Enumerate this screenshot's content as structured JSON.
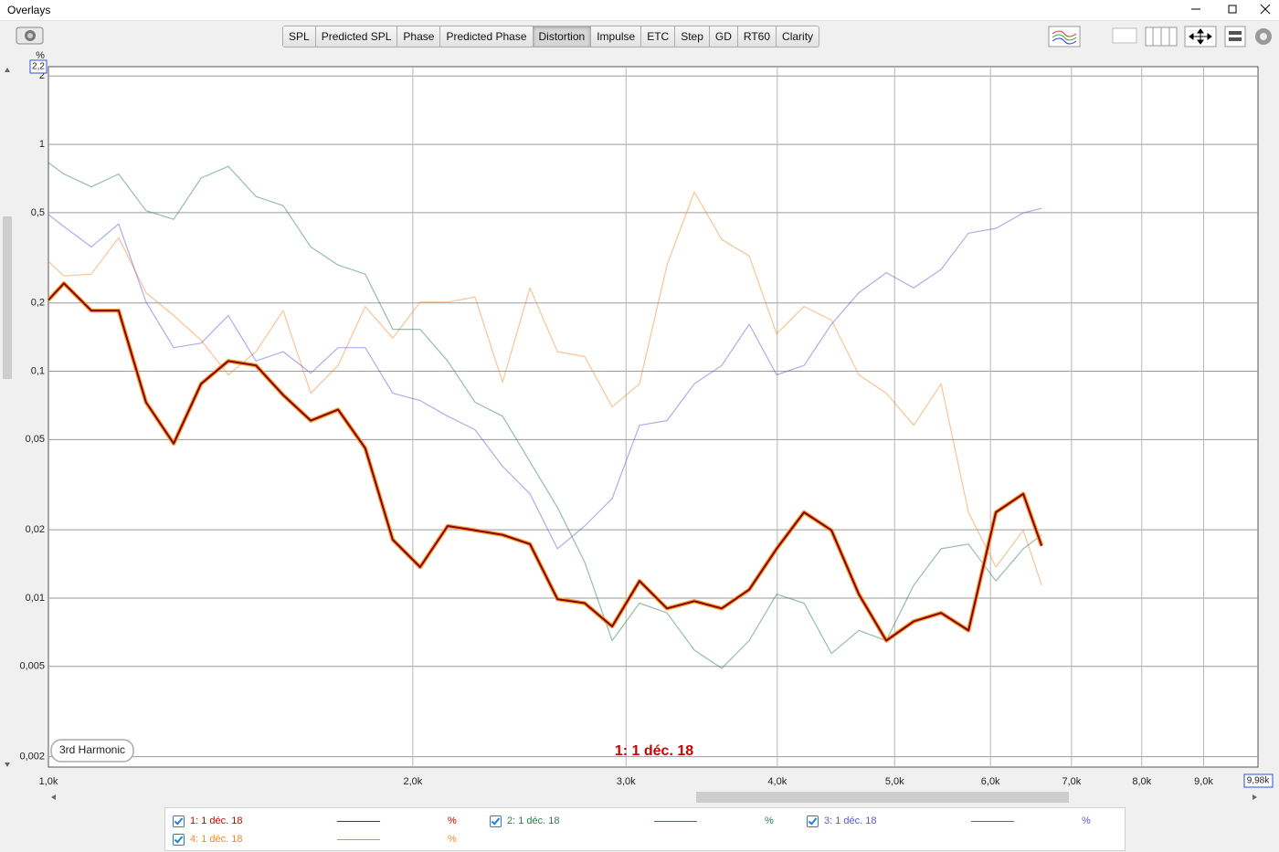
{
  "window": {
    "title": "Overlays"
  },
  "tabs": [
    "SPL",
    "Predicted SPL",
    "Phase",
    "Predicted Phase",
    "Distortion",
    "Impulse",
    "ETC",
    "Step",
    "GD",
    "RT60",
    "Clarity"
  ],
  "selected_tab": 4,
  "chart_data": {
    "type": "line",
    "y_unit": "%",
    "trace_label": "3rd Harmonic",
    "annotation": "1: 1 déc. 18",
    "log_x": true,
    "log_y": true,
    "grid": true,
    "xlim": [
      1000,
      9980
    ],
    "xlim_label": "9,98k",
    "ylim": [
      0.0018,
      2.2
    ],
    "ylim_label": "2,2",
    "xticks": [
      {
        "value": 1000,
        "label": "1,0k"
      },
      {
        "value": 2000,
        "label": "2,0k"
      },
      {
        "value": 3000,
        "label": "3,0k"
      },
      {
        "value": 4000,
        "label": "4,0k"
      },
      {
        "value": 5000,
        "label": "5,0k"
      },
      {
        "value": 6000,
        "label": "6,0k"
      },
      {
        "value": 7000,
        "label": "7,0k"
      },
      {
        "value": 8000,
        "label": "8,0k"
      },
      {
        "value": 9000,
        "label": "9,0k"
      }
    ],
    "yticks": [
      2,
      1,
      {
        "value": 0.5,
        "label": "0,5"
      },
      {
        "value": 0.2,
        "label": "0,2"
      },
      {
        "value": 0.1,
        "label": "0,1"
      },
      {
        "value": 0.05,
        "label": "0,05"
      },
      {
        "value": 0.02,
        "label": "0,02"
      },
      {
        "value": 0.01,
        "label": "0,01"
      },
      {
        "value": 0.005,
        "label": "0,005"
      },
      {
        "value": 0.002,
        "label": "0,002"
      }
    ],
    "x": [
      1000,
      1030,
      1085,
      1143,
      1204,
      1269,
      1337,
      1408,
      1484,
      1563,
      1647,
      1735,
      1827,
      1925,
      2028,
      2137,
      2251,
      2372,
      2499,
      2633,
      2773,
      2922,
      3078,
      3243,
      3416,
      3599,
      3792,
      3995,
      4209,
      4434,
      4671,
      4921,
      5185,
      5462,
      5754,
      6062,
      6387,
      6614
    ],
    "series": [
      {
        "name": "1: 1 déc. 18",
        "color": "#cc0000",
        "unit": "%",
        "checked": true,
        "selected": true,
        "values": [
          0.206,
          0.244,
          0.185,
          0.185,
          0.073,
          0.048,
          0.088,
          0.111,
          0.106,
          0.0785,
          0.0606,
          0.0677,
          0.0458,
          0.0181,
          0.0137,
          0.0208,
          0.0199,
          0.019,
          0.0173,
          0.0099,
          0.0095,
          0.0075,
          0.0119,
          0.009,
          0.0097,
          0.009,
          0.0109,
          0.0165,
          0.0239,
          0.0199,
          0.0104,
          0.0065,
          0.0079,
          0.0086,
          0.0072,
          0.0239,
          0.0288,
          0.017
        ]
      },
      {
        "name": "2: 1 déc. 18",
        "color": "#2e7d4f",
        "unit": "%",
        "checked": true,
        "selected": false,
        "values": [
          0.83,
          0.74,
          0.65,
          0.74,
          0.51,
          0.467,
          0.71,
          0.8,
          0.589,
          0.537,
          0.353,
          0.294,
          0.268,
          0.153,
          0.153,
          0.111,
          0.073,
          0.0634,
          0.0399,
          0.0251,
          0.0144,
          0.0065,
          0.0095,
          0.0086,
          0.0059,
          0.0049,
          0.0065,
          0.0104,
          0.0095,
          0.0057,
          0.0072,
          0.0065,
          0.0114,
          0.0165,
          0.0173,
          0.0119,
          0.0165,
          0.019
        ]
      },
      {
        "name": "3: 1 déc. 18",
        "color": "#5b5bd6",
        "unit": "%",
        "checked": true,
        "selected": false,
        "values": [
          0.49,
          0.434,
          0.353,
          0.446,
          0.202,
          0.127,
          0.133,
          0.176,
          0.111,
          0.122,
          0.098,
          0.127,
          0.127,
          0.08,
          0.0743,
          0.0634,
          0.0552,
          0.0381,
          0.0288,
          0.0165,
          0.0208,
          0.0275,
          0.0578,
          0.0606,
          0.088,
          0.106,
          0.161,
          0.0964,
          0.106,
          0.161,
          0.222,
          0.272,
          0.233,
          0.281,
          0.406,
          0.426,
          0.499,
          0.522
        ]
      },
      {
        "name": "4: 1 déc. 18",
        "color": "#f08a30",
        "unit": "%",
        "checked": true,
        "selected": false,
        "values": [
          0.305,
          0.263,
          0.268,
          0.388,
          0.222,
          0.176,
          0.137,
          0.0964,
          0.122,
          0.185,
          0.08,
          0.106,
          0.193,
          0.14,
          0.202,
          0.202,
          0.212,
          0.0895,
          0.233,
          0.122,
          0.116,
          0.0696,
          0.088,
          0.294,
          0.617,
          0.381,
          0.322,
          0.146,
          0.193,
          0.168,
          0.0964,
          0.08,
          0.0578,
          0.088,
          0.0239,
          0.0137,
          0.0199,
          0.0114
        ]
      }
    ]
  }
}
